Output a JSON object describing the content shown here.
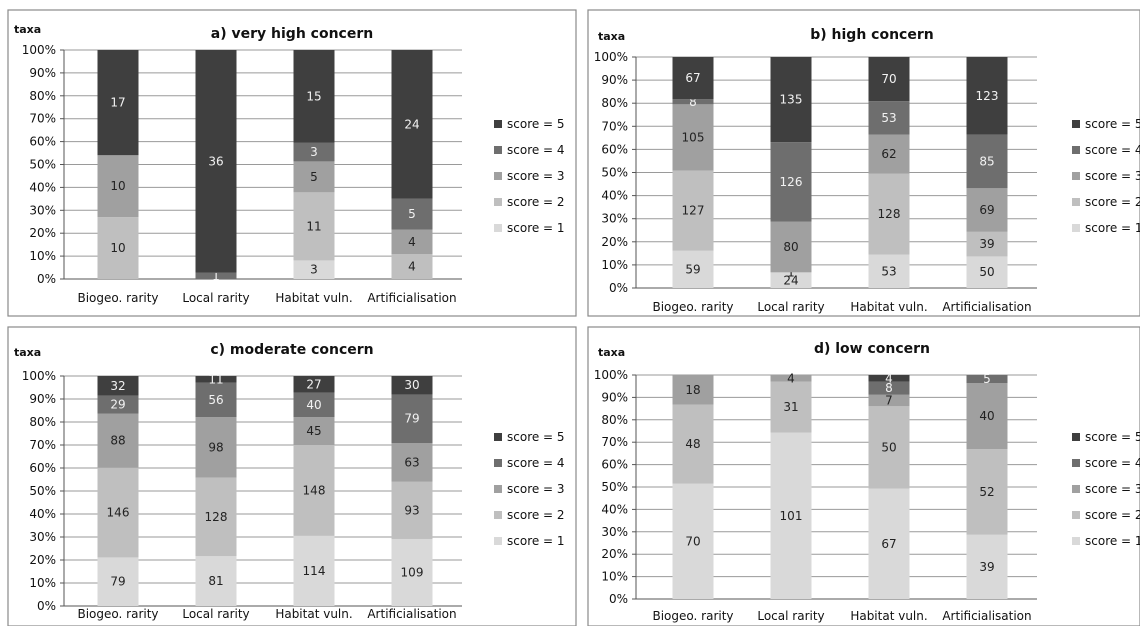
{
  "colors": {
    "score = 1": "#d9d9d9",
    "score = 2": "#bfbfbf",
    "score = 3": "#a0a0a0",
    "score = 4": "#6e6e6e",
    "score = 5": "#3f3f3f"
  },
  "chart_data": [
    {
      "type": "bar",
      "stacked": "percent",
      "title": "a) very high concern",
      "ylabel": "taxa",
      "ylim": [
        0,
        100
      ],
      "yticks": [
        "0%",
        "10%",
        "20%",
        "30%",
        "40%",
        "50%",
        "60%",
        "70%",
        "80%",
        "90%",
        "100%"
      ],
      "grid": true,
      "legend": "right",
      "categories": [
        "Biogeo. rarity",
        "Local rarity",
        "Habitat vuln.",
        "Artificialisation"
      ],
      "series": [
        {
          "name": "score = 1",
          "values": [
            0,
            0,
            3,
            0
          ]
        },
        {
          "name": "score = 2",
          "values": [
            10,
            0,
            11,
            4
          ]
        },
        {
          "name": "score = 3",
          "values": [
            10,
            0,
            5,
            4
          ]
        },
        {
          "name": "score = 4",
          "values": [
            0,
            1,
            3,
            5
          ]
        },
        {
          "name": "score = 5",
          "values": [
            17,
            36,
            15,
            24
          ]
        }
      ]
    },
    {
      "type": "bar",
      "stacked": "percent",
      "title": "b) high concern",
      "ylabel": "taxa",
      "ylim": [
        0,
        100
      ],
      "yticks": [
        "0%",
        "10%",
        "20%",
        "30%",
        "40%",
        "50%",
        "60%",
        "70%",
        "80%",
        "90%",
        "100%"
      ],
      "grid": true,
      "legend": "right",
      "categories": [
        "Biogeo. rarity",
        "Local rarity",
        "Habitat vuln.",
        "Artificialisation"
      ],
      "series": [
        {
          "name": "score = 1",
          "values": [
            59,
            24,
            53,
            50
          ]
        },
        {
          "name": "score = 2",
          "values": [
            127,
            1,
            128,
            39
          ]
        },
        {
          "name": "score = 3",
          "values": [
            105,
            80,
            62,
            69
          ]
        },
        {
          "name": "score = 4",
          "values": [
            8,
            126,
            53,
            85
          ]
        },
        {
          "name": "score = 5",
          "values": [
            67,
            135,
            70,
            123
          ]
        }
      ]
    },
    {
      "type": "bar",
      "stacked": "percent",
      "title": "c) moderate concern",
      "ylabel": "taxa",
      "ylim": [
        0,
        100
      ],
      "yticks": [
        "0%",
        "10%",
        "20%",
        "30%",
        "40%",
        "50%",
        "60%",
        "70%",
        "80%",
        "90%",
        "100%"
      ],
      "grid": true,
      "legend": "right",
      "categories": [
        "Biogeo. rarity",
        "Local rarity",
        "Habitat vuln.",
        "Artificialisation"
      ],
      "series": [
        {
          "name": "score = 1",
          "values": [
            79,
            81,
            114,
            109
          ]
        },
        {
          "name": "score = 2",
          "values": [
            146,
            128,
            148,
            93
          ]
        },
        {
          "name": "score = 3",
          "values": [
            88,
            98,
            45,
            63
          ]
        },
        {
          "name": "score = 4",
          "values": [
            29,
            56,
            40,
            79
          ]
        },
        {
          "name": "score = 5",
          "values": [
            32,
            11,
            27,
            30
          ]
        }
      ]
    },
    {
      "type": "bar",
      "stacked": "percent",
      "title": "d) low concern",
      "ylabel": "taxa",
      "ylim": [
        0,
        100
      ],
      "yticks": [
        "0%",
        "10%",
        "20%",
        "30%",
        "40%",
        "50%",
        "60%",
        "70%",
        "80%",
        "90%",
        "100%"
      ],
      "grid": true,
      "legend": "right",
      "categories": [
        "Biogeo. rarity",
        "Local rarity",
        "Habitat vuln.",
        "Artificialisation"
      ],
      "series": [
        {
          "name": "score = 1",
          "values": [
            70,
            101,
            67,
            39
          ]
        },
        {
          "name": "score = 2",
          "values": [
            48,
            31,
            50,
            52
          ]
        },
        {
          "name": "score = 3",
          "values": [
            18,
            4,
            7,
            40
          ]
        },
        {
          "name": "score = 4",
          "values": [
            0,
            0,
            8,
            5
          ]
        },
        {
          "name": "score = 5",
          "values": [
            0,
            0,
            4,
            0
          ]
        }
      ]
    }
  ]
}
